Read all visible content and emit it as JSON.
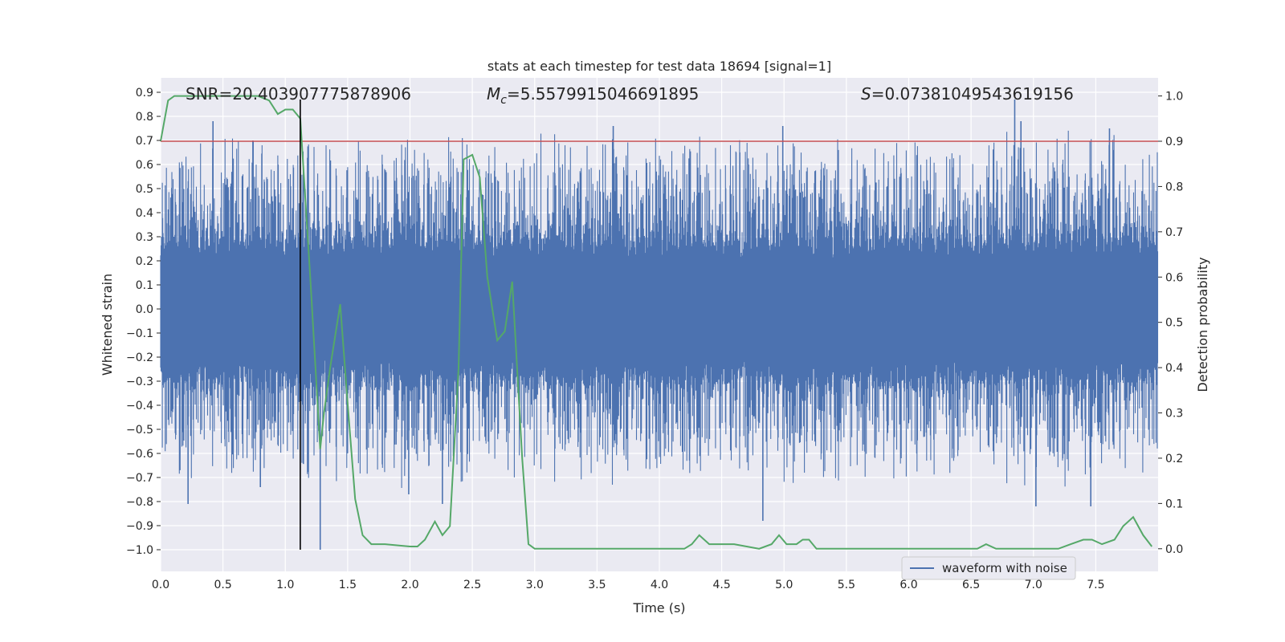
{
  "chart_data": {
    "type": "line",
    "title": "stats at each timestep for test data 18694 [signal=1]",
    "xlabel": "Time (s)",
    "ylabel_left": "Whitened strain",
    "ylabel_right": "Detection probability",
    "xlim": [
      0.0,
      8.0
    ],
    "ylim_left": [
      -1.09,
      0.96
    ],
    "ylim_right": [
      -0.05,
      1.04
    ],
    "x_ticks": [
      "0.0",
      "0.5",
      "1.0",
      "1.5",
      "2.0",
      "2.5",
      "3.0",
      "3.5",
      "4.0",
      "4.5",
      "5.0",
      "5.5",
      "6.0",
      "6.5",
      "7.0",
      "7.5"
    ],
    "y_left_ticks": [
      "0.9",
      "0.8",
      "0.7",
      "0.6",
      "0.5",
      "0.4",
      "0.3",
      "0.2",
      "0.1",
      "0.0",
      "-0.1",
      "-0.2",
      "-0.3",
      "-0.4",
      "-0.5",
      "-0.6",
      "-0.7",
      "-0.8",
      "-0.9",
      "-1.0"
    ],
    "y_right_ticks": [
      "1.0",
      "0.9",
      "0.8",
      "0.7",
      "0.6",
      "0.5",
      "0.4",
      "0.3",
      "0.2",
      "0.1",
      "0.0"
    ],
    "annotations": {
      "snr": "SNR=20.403907775878906",
      "mc_symbol": "M",
      "mc_sub": "c",
      "mc_value": "=5.5579915046691895",
      "s_symbol": "S",
      "s_value": "=0.07381049543619156"
    },
    "legend": {
      "label": "waveform with noise",
      "position": "lower right"
    },
    "threshold_line": {
      "y_prob": 0.9,
      "color": "#c44e52"
    },
    "marker_line": {
      "x": 1.12,
      "y_from": -1.0,
      "y_to": 0.87
    },
    "waveform": {
      "name": "waveform with noise",
      "color": "#4c72b0",
      "core_amplitude": 0.28,
      "spike_amplitude_typical": 0.5,
      "spike_peaks": [
        {
          "x": 0.42,
          "y": 0.78
        },
        {
          "x": 0.74,
          "y": 0.7
        },
        {
          "x": 1.28,
          "y": -1.0
        },
        {
          "x": 0.22,
          "y": -0.81
        },
        {
          "x": 0.8,
          "y": -0.74
        },
        {
          "x": 1.99,
          "y": -0.77
        },
        {
          "x": 2.26,
          "y": -0.81
        },
        {
          "x": 3.63,
          "y": 0.76
        },
        {
          "x": 4.83,
          "y": -0.88
        },
        {
          "x": 4.99,
          "y": 0.76
        },
        {
          "x": 6.85,
          "y": 0.87
        },
        {
          "x": 6.9,
          "y": 0.78
        },
        {
          "x": 7.61,
          "y": 0.75
        },
        {
          "x": 7.46,
          "y": -0.82
        },
        {
          "x": 7.02,
          "y": -0.82
        }
      ]
    },
    "detection_probability": {
      "color": "#55a868",
      "x": [
        0.0,
        0.06,
        0.11,
        0.2,
        0.4,
        0.6,
        0.78,
        0.87,
        0.94,
        1.0,
        1.06,
        1.12,
        1.2,
        1.28,
        1.31,
        1.36,
        1.44,
        1.5,
        1.56,
        1.62,
        1.69,
        1.8,
        2.0,
        2.06,
        2.12,
        2.2,
        2.26,
        2.32,
        2.39,
        2.43,
        2.5,
        2.56,
        2.62,
        2.7,
        2.76,
        2.82,
        2.9,
        2.95,
        3.0,
        3.2,
        3.4,
        3.6,
        3.8,
        4.0,
        4.2,
        4.26,
        4.32,
        4.4,
        4.6,
        4.8,
        4.9,
        4.96,
        5.02,
        5.1,
        5.15,
        5.2,
        5.26,
        5.35,
        5.6,
        6.0,
        6.2,
        6.4,
        6.55,
        6.62,
        6.7,
        6.9,
        7.2,
        7.3,
        7.4,
        7.47,
        7.55,
        7.65,
        7.72,
        7.8,
        7.88,
        7.95
      ],
      "y": [
        0.9,
        0.99,
        1.0,
        1.0,
        1.0,
        1.0,
        1.0,
        0.99,
        0.96,
        0.97,
        0.97,
        0.95,
        0.6,
        0.22,
        0.3,
        0.4,
        0.54,
        0.32,
        0.11,
        0.03,
        0.01,
        0.01,
        0.005,
        0.005,
        0.02,
        0.06,
        0.03,
        0.05,
        0.4,
        0.86,
        0.87,
        0.82,
        0.6,
        0.46,
        0.48,
        0.59,
        0.2,
        0.01,
        0.0,
        0.0,
        0.0,
        0.0,
        0.0,
        0.0,
        0.0,
        0.01,
        0.03,
        0.01,
        0.01,
        0.0,
        0.01,
        0.03,
        0.01,
        0.01,
        0.02,
        0.02,
        0.0,
        0.0,
        0.0,
        0.0,
        0.0,
        0.0,
        0.0,
        0.01,
        0.0,
        0.0,
        0.0,
        0.01,
        0.02,
        0.02,
        0.01,
        0.02,
        0.05,
        0.07,
        0.03,
        0.005
      ]
    }
  }
}
